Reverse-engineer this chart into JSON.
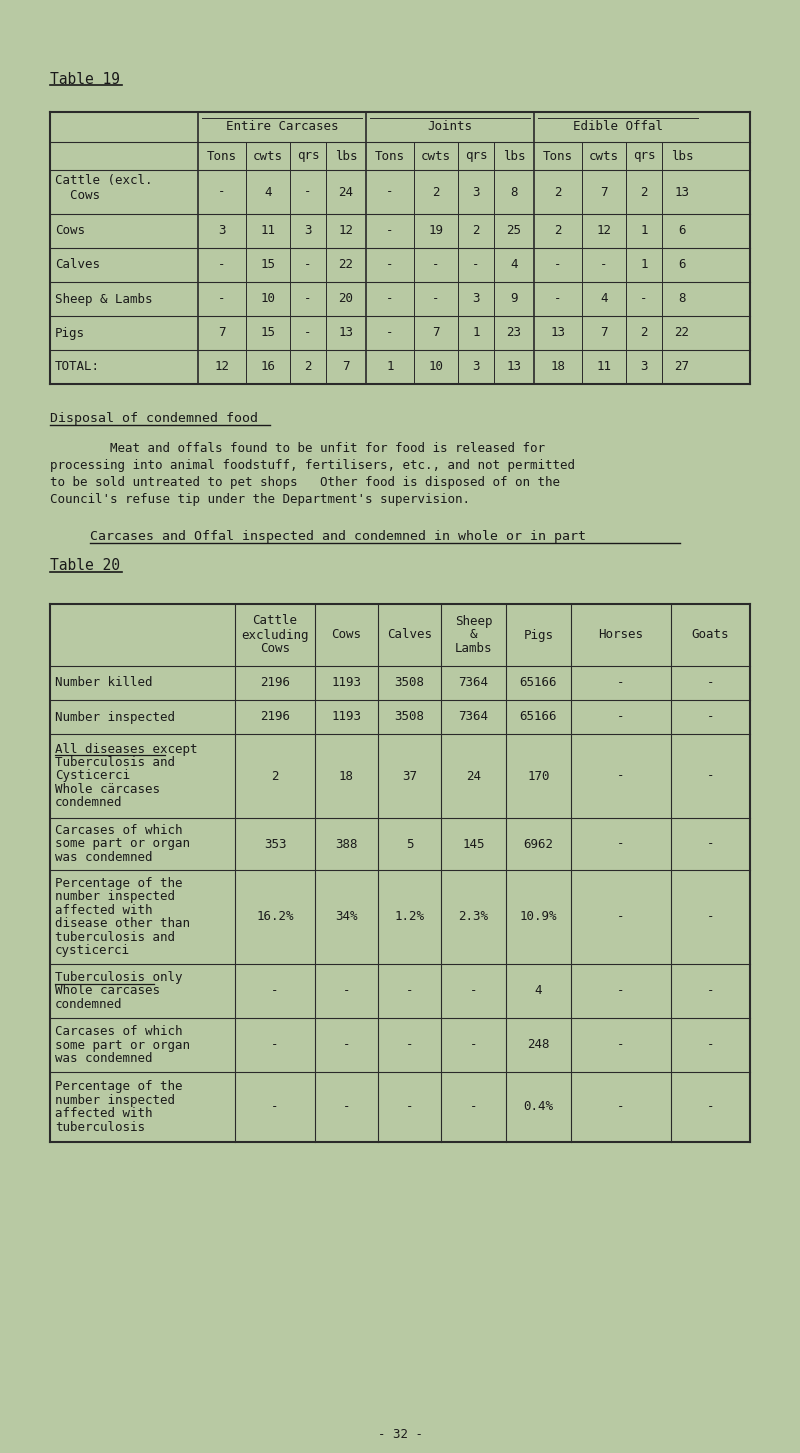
{
  "bg_color": "#b8c9a3",
  "text_color": "#1a1a1a",
  "title19": "Table 19",
  "title20": "Table 20",
  "disposal_heading": "Disposal of condemned food",
  "disposal_lines": [
    "        Meat and offals found to be unfit for food is released for",
    "processing into animal foodstuff, fertilisers, etc., and not permitted",
    "to be sold untreated to pet shops   Other food is disposed of on the",
    "Council's refuse tip under the Department's supervision."
  ],
  "carcases_heading": "Carcases and Offal inspected and condemned in whole or in part",
  "page_num": "- 32 -",
  "table19_header1": [
    "Entire Carcases",
    "Joints",
    "Edible Offal"
  ],
  "table19_header2": [
    "Tons",
    "cwts",
    "qrs",
    "lbs",
    "Tons",
    "cwts",
    "qrs",
    "lbs",
    "Tons",
    "cwts",
    "qrs",
    "lbs"
  ],
  "table19_rows": [
    [
      "Cattle (excl.",
      "  Cows",
      "-",
      "4",
      "-",
      "24",
      "-",
      "2",
      "3",
      "8",
      "2",
      "7",
      "2",
      "13"
    ],
    [
      "Cows",
      "",
      "3",
      "11",
      "3",
      "12",
      "-",
      "19",
      "2",
      "25",
      "2",
      "12",
      "1",
      "6"
    ],
    [
      "Calves",
      "",
      "-",
      "15",
      "-",
      "22",
      "-",
      "-",
      "-",
      "4",
      "-",
      "-",
      "1",
      "6"
    ],
    [
      "Sheep & Lambs",
      "",
      "-",
      "10",
      "-",
      "20",
      "-",
      "-",
      "3",
      "9",
      "-",
      "4",
      "-",
      "8"
    ],
    [
      "Pigs",
      "",
      "7",
      "15",
      "-",
      "13",
      "-",
      "7",
      "1",
      "23",
      "13",
      "7",
      "2",
      "22"
    ],
    [
      "TOTAL:",
      "",
      "12",
      "16",
      "2",
      "7",
      "1",
      "10",
      "3",
      "13",
      "18",
      "11",
      "3",
      "27"
    ]
  ],
  "table20_headers": [
    "Cattle\nexcluding\nCows",
    "Cows",
    "Calves",
    "Sheep\n&\nLambs",
    "Pigs",
    "Horses",
    "Goats"
  ],
  "table20_rows": [
    [
      "Number killed",
      "2196",
      "1193",
      "3508",
      "7364",
      "65166",
      "-",
      "-"
    ],
    [
      "Number inspected",
      "2196",
      "1193",
      "3508",
      "7364",
      "65166",
      "-",
      "-"
    ],
    [
      "All diseases except\nTuberculosis and\nCysticerci\nWhole cärcases\ncondemned",
      "2",
      "18",
      "37",
      "24",
      "170",
      "-",
      "-"
    ],
    [
      "Carcases of which\nsome part or organ\nwas condemned",
      "353",
      "388",
      "5",
      "145",
      "6962",
      "-",
      "-"
    ],
    [
      "Percentage of the\nnumber inspected\naffected with\ndisease other than\ntuberculosis and\ncysticerci",
      "16.2%",
      "34%",
      "1.2%",
      "2.3%",
      "10.9%",
      "-",
      "-"
    ],
    [
      "Tuberculosis only\nWhole carcases\ncondemned",
      "-",
      "-",
      "-",
      "-",
      "4",
      "-",
      "-"
    ],
    [
      "Carcases of which\nsome part or organ\nwas condemned",
      "-",
      "-",
      "-",
      "-",
      "248",
      "-",
      "-"
    ],
    [
      "Percentage of the\nnumber inspected\naffected with\ntuberculosis",
      "-",
      "-",
      "-",
      "-",
      "0.4%",
      "-",
      "-"
    ]
  ],
  "t20_row_underlines": [
    2,
    5
  ]
}
